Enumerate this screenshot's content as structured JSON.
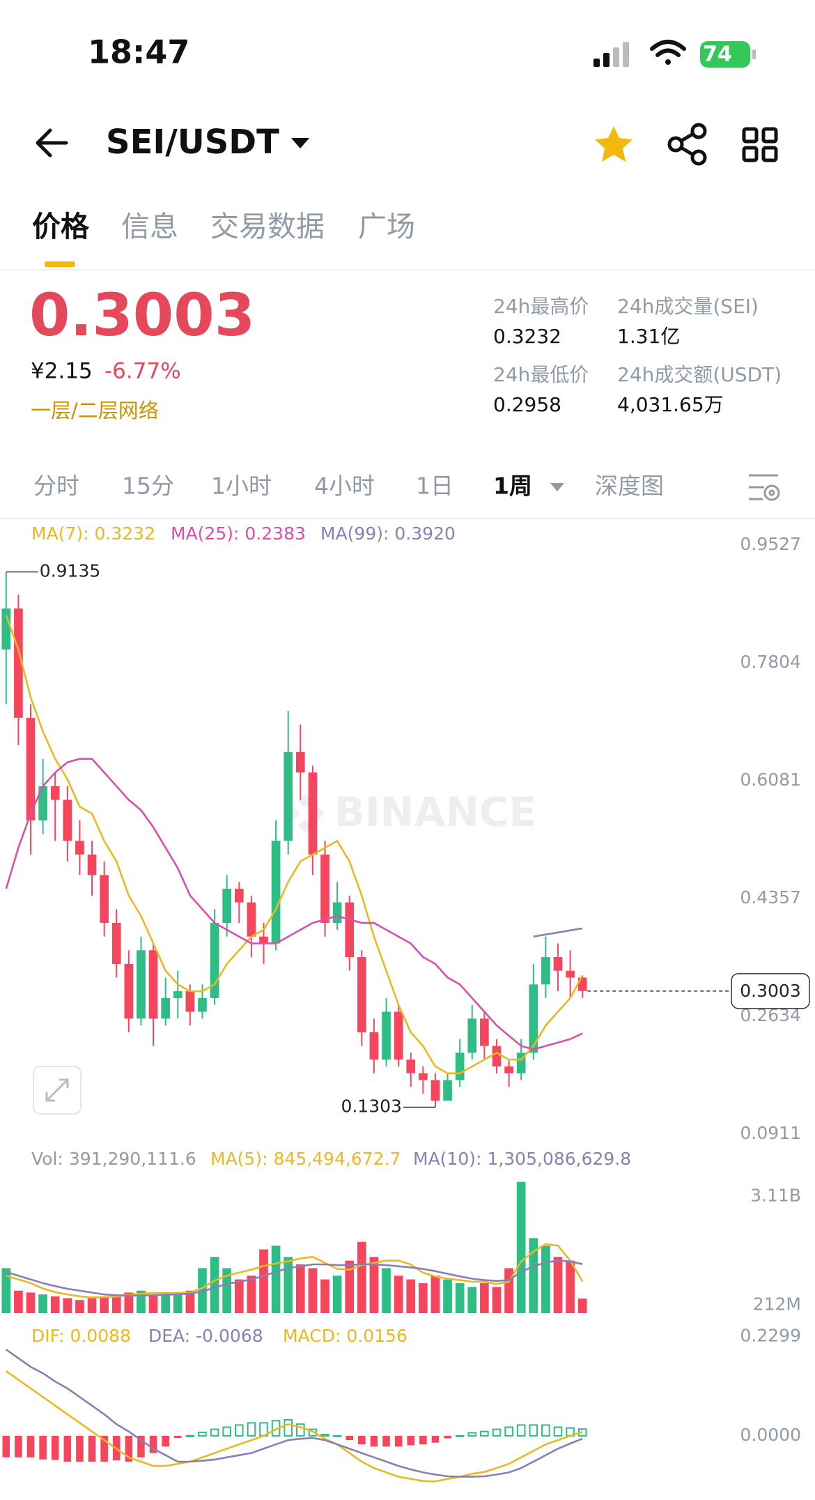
{
  "status_bar": {
    "time": "18:47",
    "battery": "74"
  },
  "header": {
    "pair": "SEI/USDT"
  },
  "tabs": [
    "价格",
    "信息",
    "交易数据",
    "广场"
  ],
  "ticker": {
    "price": "0.3003",
    "cny": "¥2.15",
    "change": "-6.77%",
    "tag": "一层/二层网络",
    "stats": [
      {
        "label": "24h最高价",
        "value": "0.3232"
      },
      {
        "label": "24h成交量(SEI)",
        "value": "1.31亿"
      },
      {
        "label": "24h最低价",
        "value": "0.2958"
      },
      {
        "label": "24h成交额(USDT)",
        "value": "4,031.65万"
      }
    ]
  },
  "intervals": [
    "分时",
    "15分",
    "1小时",
    "4小时",
    "1日",
    "1周",
    "深度图"
  ],
  "chart_data": [
    {
      "type": "candlestick",
      "watermark": "BINANCE",
      "up_color": "#2ebd85",
      "down_color": "#f6465d",
      "ylim": [
        0.0911,
        0.9527
      ],
      "yticks": [
        0.9527,
        0.7804,
        0.6081,
        0.4357,
        0.2634,
        0.0911
      ],
      "ohlc": [
        [
          0.8,
          0.9135,
          0.72,
          0.86
        ],
        [
          0.86,
          0.88,
          0.66,
          0.7
        ],
        [
          0.7,
          0.72,
          0.5,
          0.55
        ],
        [
          0.55,
          0.64,
          0.53,
          0.6
        ],
        [
          0.6,
          0.62,
          0.52,
          0.58
        ],
        [
          0.58,
          0.6,
          0.49,
          0.52
        ],
        [
          0.52,
          0.55,
          0.47,
          0.5
        ],
        [
          0.5,
          0.52,
          0.44,
          0.47
        ],
        [
          0.47,
          0.49,
          0.38,
          0.4
        ],
        [
          0.4,
          0.42,
          0.32,
          0.34
        ],
        [
          0.34,
          0.36,
          0.24,
          0.26
        ],
        [
          0.26,
          0.38,
          0.25,
          0.36
        ],
        [
          0.36,
          0.37,
          0.22,
          0.26
        ],
        [
          0.26,
          0.32,
          0.25,
          0.29
        ],
        [
          0.29,
          0.33,
          0.26,
          0.3
        ],
        [
          0.3,
          0.31,
          0.25,
          0.27
        ],
        [
          0.27,
          0.31,
          0.26,
          0.29
        ],
        [
          0.29,
          0.42,
          0.28,
          0.4
        ],
        [
          0.4,
          0.47,
          0.38,
          0.45
        ],
        [
          0.45,
          0.46,
          0.4,
          0.43
        ],
        [
          0.43,
          0.44,
          0.35,
          0.38
        ],
        [
          0.38,
          0.4,
          0.34,
          0.37
        ],
        [
          0.37,
          0.55,
          0.36,
          0.52
        ],
        [
          0.52,
          0.71,
          0.5,
          0.65
        ],
        [
          0.65,
          0.69,
          0.58,
          0.62
        ],
        [
          0.62,
          0.63,
          0.47,
          0.5
        ],
        [
          0.5,
          0.52,
          0.38,
          0.4
        ],
        [
          0.4,
          0.46,
          0.39,
          0.43
        ],
        [
          0.43,
          0.44,
          0.33,
          0.35
        ],
        [
          0.35,
          0.36,
          0.22,
          0.24
        ],
        [
          0.24,
          0.26,
          0.18,
          0.2
        ],
        [
          0.2,
          0.29,
          0.19,
          0.27
        ],
        [
          0.27,
          0.28,
          0.19,
          0.2
        ],
        [
          0.2,
          0.21,
          0.16,
          0.18
        ],
        [
          0.18,
          0.19,
          0.15,
          0.17
        ],
        [
          0.17,
          0.18,
          0.1303,
          0.14
        ],
        [
          0.14,
          0.18,
          0.14,
          0.17
        ],
        [
          0.17,
          0.23,
          0.16,
          0.21
        ],
        [
          0.21,
          0.28,
          0.2,
          0.26
        ],
        [
          0.26,
          0.27,
          0.2,
          0.22
        ],
        [
          0.22,
          0.23,
          0.18,
          0.19
        ],
        [
          0.19,
          0.2,
          0.16,
          0.18
        ],
        [
          0.18,
          0.23,
          0.17,
          0.21
        ],
        [
          0.21,
          0.34,
          0.2,
          0.31
        ],
        [
          0.31,
          0.38,
          0.29,
          0.35
        ],
        [
          0.35,
          0.37,
          0.3,
          0.33
        ],
        [
          0.33,
          0.36,
          0.29,
          0.32
        ],
        [
          0.32,
          0.3232,
          0.29,
          0.3003
        ]
      ],
      "series": [
        {
          "name": "MA(7):",
          "last_label": "0.3232",
          "color": "#e8b923",
          "values": [
            0.85,
            0.8,
            0.73,
            0.68,
            0.64,
            0.61,
            0.57,
            0.56,
            0.52,
            0.49,
            0.44,
            0.41,
            0.37,
            0.33,
            0.31,
            0.3,
            0.3,
            0.31,
            0.34,
            0.36,
            0.38,
            0.39,
            0.42,
            0.46,
            0.49,
            0.5,
            0.51,
            0.52,
            0.49,
            0.44,
            0.38,
            0.33,
            0.28,
            0.24,
            0.22,
            0.19,
            0.18,
            0.18,
            0.19,
            0.2,
            0.21,
            0.2,
            0.2,
            0.22,
            0.25,
            0.27,
            0.29,
            0.3232
          ]
        },
        {
          "name": "MA(25):",
          "last_label": "0.2383",
          "color": "#d94fb0",
          "values": [
            0.45,
            0.51,
            0.56,
            0.6,
            0.62,
            0.635,
            0.64,
            0.64,
            0.62,
            0.6,
            0.58,
            0.565,
            0.54,
            0.51,
            0.48,
            0.44,
            0.42,
            0.4,
            0.39,
            0.38,
            0.37,
            0.37,
            0.37,
            0.38,
            0.39,
            0.4,
            0.405,
            0.41,
            0.405,
            0.4,
            0.4,
            0.39,
            0.38,
            0.37,
            0.35,
            0.34,
            0.32,
            0.31,
            0.29,
            0.27,
            0.25,
            0.235,
            0.22,
            0.215,
            0.22,
            0.225,
            0.23,
            0.2383
          ]
        },
        {
          "name": "MA(99):",
          "last_label": "0.3920",
          "color": "#8a7fb5",
          "values": [
            null,
            null,
            null,
            null,
            null,
            null,
            null,
            null,
            null,
            null,
            null,
            null,
            null,
            null,
            null,
            null,
            null,
            null,
            null,
            null,
            null,
            null,
            null,
            null,
            null,
            null,
            null,
            null,
            null,
            null,
            null,
            null,
            null,
            null,
            null,
            null,
            null,
            null,
            null,
            null,
            null,
            null,
            null,
            0.38,
            0.383,
            0.386,
            0.389,
            0.392
          ]
        }
      ]
    },
    {
      "type": "volume",
      "name": "Vol:",
      "last_label": "391,290,111.6",
      "up_color": "#2ebd85",
      "down_color": "#f6465d",
      "ylim": [
        0,
        3640000000.0
      ],
      "yticks": [
        {
          "value": 3110000000.0,
          "label": "3.11B"
        },
        {
          "value": 212000000.0,
          "label": "212M"
        }
      ],
      "values": [
        1200000000.0,
        600000000.0,
        550000000.0,
        500000000.0,
        450000000.0,
        400000000.0,
        350000000.0,
        400000000.0,
        450000000.0,
        500000000.0,
        550000000.0,
        600000000.0,
        500000000.0,
        550000000.0,
        500000000.0,
        600000000.0,
        1200000000.0,
        1500000000.0,
        1200000000.0,
        900000000.0,
        1000000000.0,
        1700000000.0,
        1800000000.0,
        1500000000.0,
        1300000000.0,
        1200000000.0,
        900000000.0,
        1000000000.0,
        1400000000.0,
        1900000000.0,
        1500000000.0,
        1200000000.0,
        1000000000.0,
        900000000.0,
        800000000.0,
        1000000000.0,
        900000000.0,
        800000000.0,
        700000000.0,
        800000000.0,
        700000000.0,
        1200000000.0,
        3500000000.0,
        2000000000.0,
        1800000000.0,
        1500000000.0,
        1400000000.0,
        391290111.6
      ],
      "series": [
        {
          "name": "MA(5):",
          "last_label": "845,494,672.7",
          "color": "#e8b923",
          "values": [
            1000000000.0,
            900000000.0,
            800000000.0,
            660000000.0,
            560000000.0,
            500000000.0,
            450000000.0,
            420000000.0,
            430000000.0,
            440000000.0,
            490000000.0,
            520000000.0,
            540000000.0,
            540000000.0,
            540000000.0,
            550000000.0,
            670000000.0,
            870000000.0,
            1000000000.0,
            1080000000.0,
            1160000000.0,
            1260000000.0,
            1320000000.0,
            1380000000.0,
            1460000000.0,
            1500000000.0,
            1340000000.0,
            1180000000.0,
            1160000000.0,
            1280000000.0,
            1340000000.0,
            1400000000.0,
            1400000000.0,
            1300000000.0,
            1080000000.0,
            980000000.0,
            920000000.0,
            880000000.0,
            840000000.0,
            840000000.0,
            780000000.0,
            840000000.0,
            1380000000.0,
            1640000000.0,
            1840000000.0,
            1800000000.0,
            1400000000.0,
            845494672.7
          ]
        },
        {
          "name": "MA(10):",
          "last_label": "1,305,086,629.8",
          "color": "#8a7fb5",
          "values": [
            1100000000.0,
            1000000000.0,
            900000000.0,
            800000000.0,
            720000000.0,
            650000000.0,
            600000000.0,
            550000000.0,
            500000000.0,
            480000000.0,
            470000000.0,
            470000000.0,
            480000000.0,
            490000000.0,
            500000000.0,
            520000000.0,
            580000000.0,
            680000000.0,
            780000000.0,
            840000000.0,
            900000000.0,
            1000000000.0,
            1100000000.0,
            1200000000.0,
            1250000000.0,
            1300000000.0,
            1300000000.0,
            1280000000.0,
            1280000000.0,
            1300000000.0,
            1300000000.0,
            1280000000.0,
            1250000000.0,
            1220000000.0,
            1180000000.0,
            1120000000.0,
            1050000000.0,
            980000000.0,
            920000000.0,
            880000000.0,
            860000000.0,
            880000000.0,
            1100000000.0,
            1250000000.0,
            1350000000.0,
            1400000000.0,
            1380000000.0,
            1305086629.8
          ]
        }
      ]
    },
    {
      "type": "histogram",
      "name": "MACD:",
      "last_label": "0.0156",
      "color": "#e8b923",
      "up_color": "#2ebd85",
      "down_color": "#f6465d",
      "ylim": [
        -0.128,
        0.2586
      ],
      "yticks": [
        0.2299,
        {
          "value": 0,
          "label": "0.0000"
        }
      ],
      "values": [
        -0.05,
        -0.05,
        -0.05,
        -0.055,
        -0.056,
        -0.06,
        -0.06,
        -0.06,
        -0.06,
        -0.057,
        -0.06,
        -0.05,
        -0.04,
        -0.025,
        -0.005,
        0.0,
        0.008,
        0.015,
        0.02,
        0.025,
        0.03,
        0.03,
        0.035,
        0.037,
        0.027,
        0.015,
        0.003,
        0.0,
        -0.01,
        -0.02,
        -0.025,
        -0.025,
        -0.025,
        -0.022,
        -0.02,
        -0.016,
        -0.006,
        0.0,
        0.007,
        0.01,
        0.015,
        0.02,
        0.025,
        0.025,
        0.025,
        0.02,
        0.018,
        0.0156
      ],
      "series": [
        {
          "name": "DIF:",
          "last_label": "0.0088",
          "color": "#e8b923",
          "values": [
            0.15,
            0.13,
            0.11,
            0.09,
            0.07,
            0.05,
            0.03,
            0.01,
            -0.01,
            -0.03,
            -0.05,
            -0.06,
            -0.07,
            -0.07,
            -0.065,
            -0.06,
            -0.05,
            -0.04,
            -0.03,
            -0.02,
            -0.01,
            0.0,
            0.015,
            0.027,
            0.02,
            0.01,
            -0.007,
            -0.02,
            -0.04,
            -0.06,
            -0.075,
            -0.085,
            -0.095,
            -0.1,
            -0.105,
            -0.106,
            -0.1,
            -0.095,
            -0.088,
            -0.084,
            -0.075,
            -0.065,
            -0.05,
            -0.035,
            -0.02,
            -0.01,
            0.0,
            0.0088
          ]
        },
        {
          "name": "DEA:",
          "last_label": "-0.0068",
          "color": "#8a7fb5",
          "values": [
            0.2,
            0.18,
            0.16,
            0.145,
            0.126,
            0.11,
            0.09,
            0.07,
            0.05,
            0.027,
            0.01,
            -0.01,
            -0.03,
            -0.045,
            -0.06,
            -0.06,
            -0.058,
            -0.055,
            -0.05,
            -0.045,
            -0.04,
            -0.03,
            -0.02,
            -0.01,
            -0.007,
            -0.005,
            -0.01,
            -0.02,
            -0.03,
            -0.04,
            -0.05,
            -0.06,
            -0.07,
            -0.078,
            -0.085,
            -0.09,
            -0.094,
            -0.095,
            -0.095,
            -0.094,
            -0.09,
            -0.085,
            -0.075,
            -0.06,
            -0.045,
            -0.03,
            -0.018,
            -0.0068
          ]
        }
      ]
    }
  ]
}
